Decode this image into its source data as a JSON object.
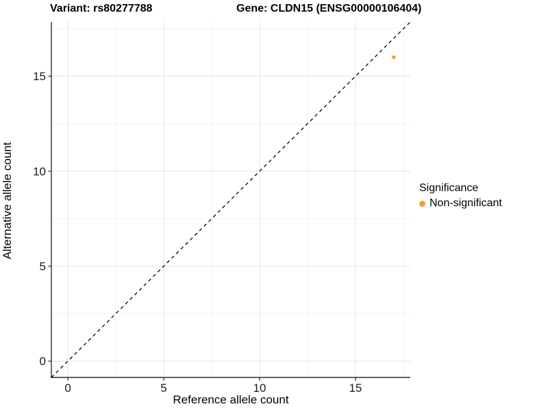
{
  "titles": {
    "variant": "Variant: rs80277788",
    "gene": "Gene: CLDN15 (ENSG00000106404)"
  },
  "legend": {
    "title": "Significance"
  },
  "chart_data": {
    "type": "scatter",
    "xlabel": "Reference allele count",
    "ylabel": "Alternative allele count",
    "xlim": [
      -0.86,
      17.86
    ],
    "ylim": [
      -0.86,
      17.86
    ],
    "x_major_ticks": [
      0,
      5,
      10,
      15
    ],
    "y_major_ticks": [
      0,
      5,
      10,
      15
    ],
    "x_minor_gridlines": [
      2.5,
      7.5,
      12.5,
      17.5
    ],
    "y_minor_gridlines": [
      2.5,
      7.5,
      12.5,
      17.5
    ],
    "grid": "major+minor",
    "legend_position": "right",
    "identity_line": {
      "style": "dashed",
      "equation": "y = x",
      "color": "#000000",
      "from": [
        -0.86,
        -0.86
      ],
      "to": [
        17.86,
        17.86
      ]
    },
    "series": [
      {
        "name": "Non-significant",
        "color": "#F9A12C",
        "points": [
          {
            "x": 17,
            "y": 16
          }
        ]
      }
    ]
  }
}
